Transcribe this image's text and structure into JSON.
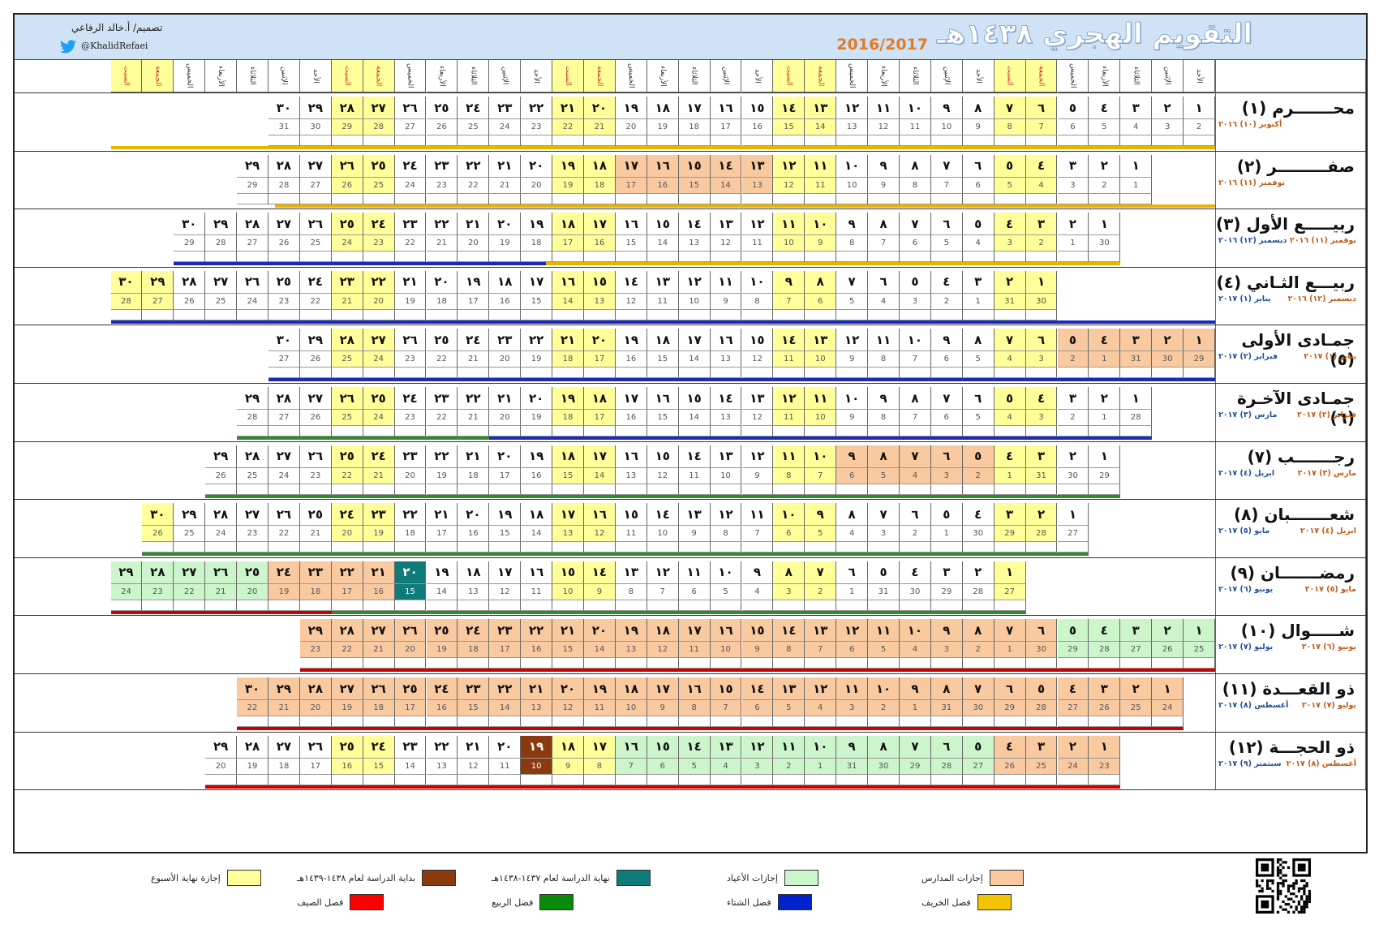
{
  "header": {
    "title": "التقويم الهجري ١٤٣٨هـ",
    "years": "2016/2017",
    "designer": "تصميم/ أ.خالد الرفاعي",
    "handle": "@KhalidRefaei"
  },
  "weekday_cycle": [
    "الأحد",
    "الإثنين",
    "الثلاثاء",
    "الأربعاء",
    "الخميس",
    "الجمعة",
    "السبت"
  ],
  "months": [
    {
      "name": "محـــــــرم (١)",
      "greg": [
        "أكتوبر (١٠) ٢٠١٦"
      ],
      "start": 0,
      "days": 30,
      "gstart": 2,
      "gmax": 31
    },
    {
      "name": "صفـــــــــر (٢)",
      "greg": [
        "نوفمبر (١١) ٢٠١٦"
      ],
      "start": 2,
      "days": 29,
      "gstart": 1,
      "gmax": 30
    },
    {
      "name": "ربيـــــع الأول (٣)",
      "greg": [
        "نوفمبر (١١) ٢٠١٦",
        "ديسمبر (١٢) ٢٠١٦"
      ],
      "start": 3,
      "days": 30,
      "gstart": 30,
      "gmax": 30
    },
    {
      "name": "ربيـــع الثـاني (٤)",
      "greg": [
        "ديسمبر (١٢) ٢٠١٦",
        "يناير (١) ٢٠١٧"
      ],
      "start": 5,
      "days": 30,
      "gstart": 30,
      "gmax": 31
    },
    {
      "name": "جمـادى الأولى (٥)",
      "greg": [
        "يناير (١) ٢٠١٧",
        "فبراير (٢) ٢٠١٧"
      ],
      "start": 0,
      "days": 30,
      "gstart": 29,
      "gmax": 31
    },
    {
      "name": "جمـادى الآخـرة (٦)",
      "greg": [
        "فبراير (٢) ٢٠١٧",
        "مارس (٣) ٢٠١٧"
      ],
      "start": 2,
      "days": 29,
      "gstart": 28,
      "gmax": 28
    },
    {
      "name": "رجـــــــب (٧)",
      "greg": [
        "مارس (٣) ٢٠١٧",
        "ابريل (٤) ٢٠١٧"
      ],
      "start": 3,
      "days": 29,
      "gstart": 29,
      "gmax": 31
    },
    {
      "name": "شعـــــــبان (٨)",
      "greg": [
        "ابريل (٤) ٢٠١٧",
        "مايو (٥) ٢٠١٧"
      ],
      "start": 4,
      "days": 30,
      "gstart": 27,
      "gmax": 30
    },
    {
      "name": "رمضـــــــان (٩)",
      "greg": [
        "مايو (٥) ٢٠١٧",
        "يونيو (٦) ٢٠١٧"
      ],
      "start": 6,
      "days": 29,
      "gstart": 27,
      "gmax": 31
    },
    {
      "name": "شـــــوال (١٠)",
      "greg": [
        "يونيو (٦) ٢٠١٧",
        "يوليو (٧) ٢٠١٧"
      ],
      "start": 0,
      "days": 29,
      "gstart": 25,
      "gmax": 30
    },
    {
      "name": "ذو القعـــدة (١١)",
      "greg": [
        "يوليو (٧) ٢٠١٧",
        "أغسطس (٨) ٢٠١٧"
      ],
      "start": 1,
      "days": 30,
      "gstart": 24,
      "gmax": 31
    },
    {
      "name": "ذو الحجـــة (١٢)",
      "greg": [
        "أغسطس (٨) ٢٠١٧",
        "سبتمبر (٩) ٢٠١٧"
      ],
      "start": 3,
      "days": 29,
      "gstart": 23,
      "gmax": 31
    }
  ],
  "legend": [
    {
      "label": "إجازة نهاية الأسبوع",
      "color": "#ffff99"
    },
    {
      "label": "بداية الدراسة لعام ١٤٣٨-١٤٣٩هـ",
      "color": "#8b3a0f"
    },
    {
      "label": "نهاية الدراسة لعام ١٤٣٧-١٤٣٨هـ",
      "color": "#0f7b7b"
    },
    {
      "label": "إجازات الأعياد",
      "color": "#ccf5cc"
    },
    {
      "label": "إجازات المدارس",
      "color": "#f9c9a0"
    },
    {
      "label": "فصل الصيف",
      "color": "#ff0000"
    },
    {
      "label": "فصل الربيع",
      "color": "#0a8a0a"
    },
    {
      "label": "فصل الشتاء",
      "color": "#0022cc"
    },
    {
      "label": "فصل الخريف",
      "color": "#f5c400"
    }
  ],
  "colors": {
    "weekend": "#ffff99",
    "school": "#f9c9a0",
    "eid": "#ccf5cc",
    "study_start": "#8b3a0f",
    "study_end": "#0f7b7b",
    "summer": "#cc0000",
    "spring": "#2e8b2e",
    "winter": "#1a2bb8",
    "autumn": "#e8b400",
    "header_day": "#c0392b"
  }
}
